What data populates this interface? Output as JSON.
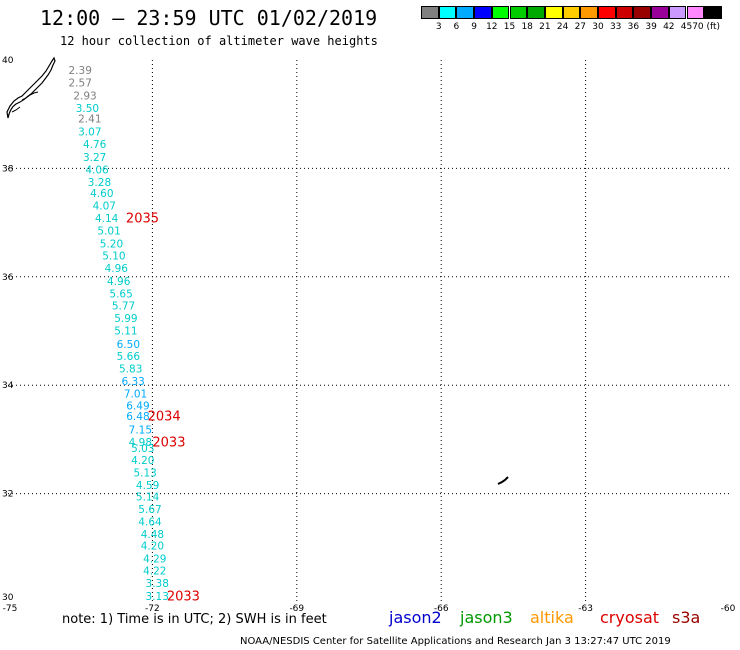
{
  "header": {
    "title": "12:00 – 23:59 UTC 01/02/2019",
    "subtitle": "12 hour collection of altimeter wave heights"
  },
  "colorbar": {
    "colors": [
      "#808080",
      "#00ffff",
      "#00aaff",
      "#0000ff",
      "#00ff00",
      "#00cc00",
      "#00aa00",
      "#ffff00",
      "#ffcc00",
      "#ff9900",
      "#ff0000",
      "#cc0000",
      "#990000",
      "#990099",
      "#cc99ff",
      "#ff88ff",
      "#000000"
    ],
    "labels": [
      "3",
      "6",
      "9",
      "12",
      "15",
      "18",
      "21",
      "24",
      "27",
      "30",
      "33",
      "36",
      "39",
      "42",
      "45",
      "70 (ft)"
    ]
  },
  "axes": {
    "xlim": [
      -75,
      -60
    ],
    "ylim": [
      30,
      40
    ],
    "xticks": [
      -75,
      -72,
      -69,
      -66,
      -63,
      -60
    ],
    "yticks": [
      30,
      32,
      34,
      36,
      38,
      40
    ],
    "xtick_labels": [
      "-75",
      "-72",
      "-69",
      "-66",
      "-63",
      "-60"
    ],
    "ytick_labels": [
      "30",
      "32",
      "34",
      "36",
      "38",
      "40"
    ]
  },
  "chart_data": {
    "type": "scatter",
    "grid": true,
    "xlim": [
      -75,
      -60
    ],
    "ylim": [
      30,
      40
    ],
    "wave_heights": [
      {
        "x": -73.5,
        "y": 39.8,
        "v": "2.39",
        "color": "#808080"
      },
      {
        "x": -73.5,
        "y": 39.57,
        "v": "2.57",
        "color": "#808080"
      },
      {
        "x": -73.4,
        "y": 39.33,
        "v": "2.93",
        "color": "#808080"
      },
      {
        "x": -73.35,
        "y": 39.1,
        "v": "3.50",
        "color": "#00cccc"
      },
      {
        "x": -73.3,
        "y": 38.9,
        "v": "2.41",
        "color": "#808080"
      },
      {
        "x": -73.3,
        "y": 38.66,
        "v": "3.07",
        "color": "#00cccc"
      },
      {
        "x": -73.2,
        "y": 38.43,
        "v": "4.76",
        "color": "#00cccc"
      },
      {
        "x": -73.2,
        "y": 38.19,
        "v": "3.27",
        "color": "#00cccc"
      },
      {
        "x": -73.15,
        "y": 37.96,
        "v": "4.06",
        "color": "#00cccc"
      },
      {
        "x": -73.1,
        "y": 37.73,
        "v": "3.28",
        "color": "#00cccc"
      },
      {
        "x": -73.05,
        "y": 37.53,
        "v": "4.60",
        "color": "#00cccc"
      },
      {
        "x": -73.0,
        "y": 37.3,
        "v": "4.07",
        "color": "#00cccc"
      },
      {
        "x": -72.95,
        "y": 37.07,
        "v": "4.14",
        "color": "#00cccc"
      },
      {
        "x": -72.9,
        "y": 36.84,
        "v": "5.01",
        "color": "#00cccc"
      },
      {
        "x": -72.85,
        "y": 36.6,
        "v": "5.20",
        "color": "#00cccc"
      },
      {
        "x": -72.8,
        "y": 36.37,
        "v": "5.10",
        "color": "#00cccc"
      },
      {
        "x": -72.75,
        "y": 36.14,
        "v": "4.96",
        "color": "#00cccc"
      },
      {
        "x": -72.7,
        "y": 35.9,
        "v": "4.96",
        "color": "#00cccc"
      },
      {
        "x": -72.65,
        "y": 35.67,
        "v": "5.65",
        "color": "#00cccc"
      },
      {
        "x": -72.6,
        "y": 35.45,
        "v": "5.77",
        "color": "#00cccc"
      },
      {
        "x": -72.55,
        "y": 35.22,
        "v": "5.99",
        "color": "#00cccc"
      },
      {
        "x": -72.55,
        "y": 34.99,
        "v": "5.11",
        "color": "#00cccc"
      },
      {
        "x": -72.5,
        "y": 34.74,
        "v": "6.50",
        "color": "#00aaff"
      },
      {
        "x": -72.5,
        "y": 34.52,
        "v": "5.66",
        "color": "#00cccc"
      },
      {
        "x": -72.45,
        "y": 34.29,
        "v": "5.83",
        "color": "#00cccc"
      },
      {
        "x": -72.4,
        "y": 34.06,
        "v": "6.33",
        "color": "#00aaff"
      },
      {
        "x": -72.35,
        "y": 33.83,
        "v": "7.01",
        "color": "#00aaff"
      },
      {
        "x": -72.3,
        "y": 33.61,
        "v": "6.49",
        "color": "#00aaff"
      },
      {
        "x": -72.3,
        "y": 33.41,
        "v": "6.48",
        "color": "#00aaff"
      },
      {
        "x": -72.25,
        "y": 33.16,
        "v": "7.15",
        "color": "#00aaff"
      },
      {
        "x": -72.25,
        "y": 32.93,
        "v": "4.98",
        "color": "#00cccc"
      },
      {
        "x": -72.2,
        "y": 32.82,
        "v": "5.03",
        "color": "#00cccc"
      },
      {
        "x": -72.2,
        "y": 32.6,
        "v": "4.20",
        "color": "#00cccc"
      },
      {
        "x": -72.15,
        "y": 32.37,
        "v": "5.13",
        "color": "#00cccc"
      },
      {
        "x": -72.1,
        "y": 32.14,
        "v": "4.59",
        "color": "#00cccc"
      },
      {
        "x": -72.1,
        "y": 31.93,
        "v": "5.14",
        "color": "#00cccc"
      },
      {
        "x": -72.05,
        "y": 31.7,
        "v": "5.67",
        "color": "#00cccc"
      },
      {
        "x": -72.05,
        "y": 31.47,
        "v": "4.64",
        "color": "#00cccc"
      },
      {
        "x": -72.0,
        "y": 31.24,
        "v": "4.48",
        "color": "#00cccc"
      },
      {
        "x": -72.0,
        "y": 31.02,
        "v": "4.20",
        "color": "#00cccc"
      },
      {
        "x": -71.95,
        "y": 30.78,
        "v": "4.29",
        "color": "#00cccc"
      },
      {
        "x": -71.95,
        "y": 30.56,
        "v": "4.22",
        "color": "#00cccc"
      },
      {
        "x": -71.9,
        "y": 30.33,
        "v": "3.38",
        "color": "#00cccc"
      },
      {
        "x": -71.9,
        "y": 30.09,
        "v": "3.13",
        "color": "#00cccc"
      }
    ],
    "time_labels": [
      {
        "x": -72.55,
        "y": 37.07,
        "v": "2035",
        "color": "#dd0000"
      },
      {
        "x": -72.1,
        "y": 33.41,
        "v": "2034",
        "color": "#dd0000"
      },
      {
        "x": -72.0,
        "y": 32.93,
        "v": "2033",
        "color": "#dd0000"
      },
      {
        "x": -71.7,
        "y": 30.09,
        "v": "2033",
        "color": "#dd0000"
      }
    ]
  },
  "footer": {
    "note": "note:  1) Time is in UTC;  2) SWH is in feet",
    "missions": [
      {
        "name": "jason2",
        "color": "#0000cc"
      },
      {
        "name": "jason3",
        "color": "#009900"
      },
      {
        "name": "altika",
        "color": "#ff9900"
      },
      {
        "name": "cryosat",
        "color": "#dd0000"
      },
      {
        "name": "s3a",
        "color": "#990000"
      }
    ],
    "credit": "NOAA/NESDIS Center for Satellite Applications and Research   Jan  3 13:27:47 UTC 2019"
  }
}
